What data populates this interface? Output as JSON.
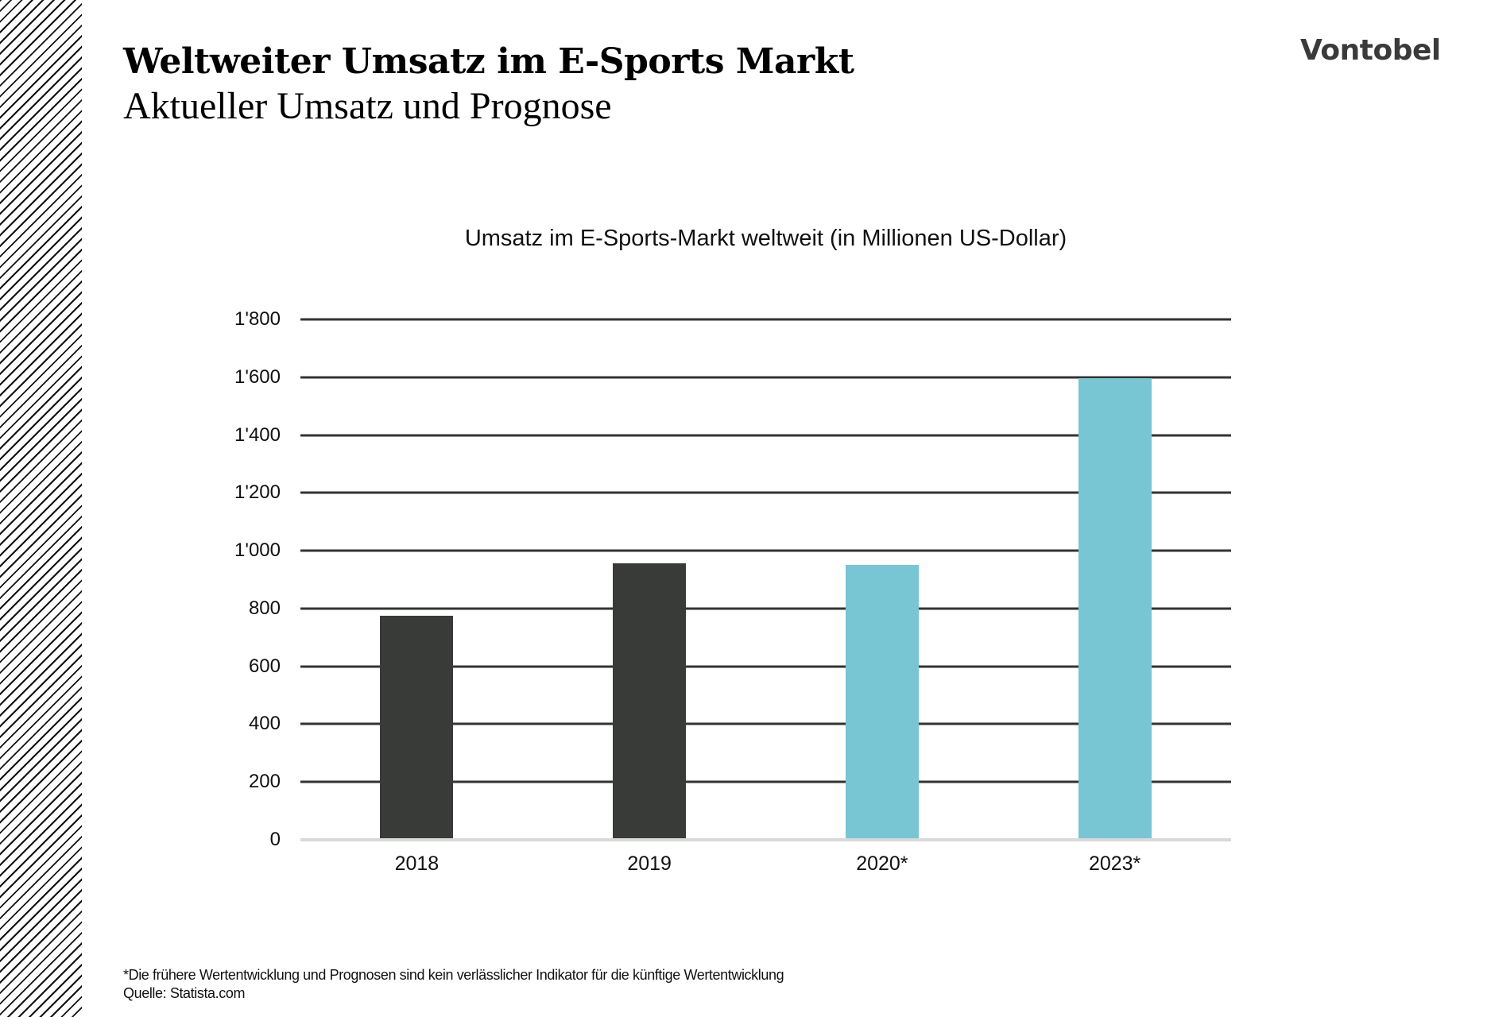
{
  "header": {
    "title": "Weltweiter Umsatz im E-Sports Markt",
    "subtitle": "Aktueller Umsatz und Prognose",
    "logo": "Vontobel"
  },
  "colors": {
    "actual": "#393b39",
    "forecast": "#78c5d4",
    "gridline": "#333333",
    "baseline": "#d9d9d9",
    "logo": "#3a3a3a"
  },
  "chart_data": {
    "type": "bar",
    "title": "Umsatz im E-Sports-Markt weltweit (in Millionen US-Dollar)",
    "xlabel": "",
    "ylabel": "",
    "categories": [
      "2018",
      "2019",
      "2020*",
      "2023*"
    ],
    "values": [
      776,
      957,
      951,
      1598
    ],
    "bar_types": [
      "actual",
      "actual",
      "forecast",
      "forecast"
    ],
    "ylim": [
      0,
      1800
    ],
    "yticks": [
      0,
      200,
      400,
      600,
      800,
      1000,
      1200,
      1400,
      1600,
      1800
    ],
    "ytick_labels": [
      "0",
      "200",
      "400",
      "600",
      "800",
      "1'000",
      "1'200",
      "1'400",
      "1'600",
      "1'800"
    ],
    "grid": true,
    "legend": null
  },
  "footer": {
    "disclaimer": "*Die frühere Wertentwicklung und Prognosen sind kein verlässlicher Indikator für die künftige Wertentwicklung",
    "source": "Quelle: Statista.com"
  }
}
